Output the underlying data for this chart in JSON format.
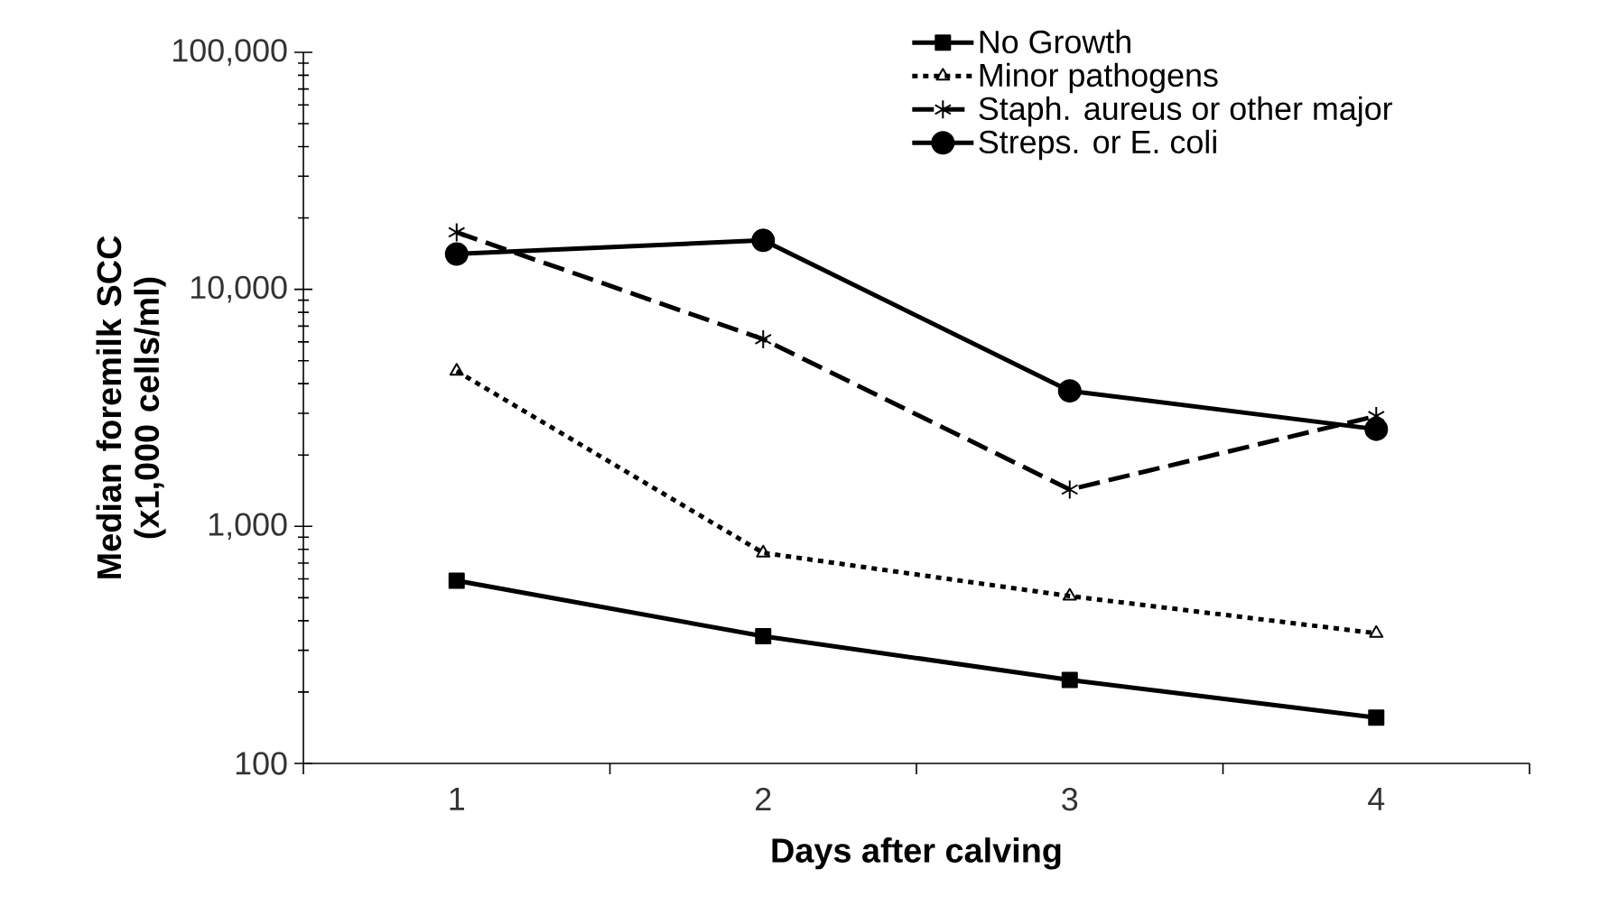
{
  "chart_data": {
    "type": "line",
    "xlabel": "Days after calving",
    "ylabel": "Median foremilk SCC (x1,000 cells/ml)",
    "categories": [
      "1",
      "2",
      "3",
      "4"
    ],
    "series": [
      {
        "name": "No Growth",
        "color": "#000000",
        "marker": "square",
        "line_style": "solid",
        "values": [
          590,
          344,
          225,
          156
        ]
      },
      {
        "name": "Minor pathogens",
        "color": "#000000",
        "marker": "triangle",
        "line_style": "dotted",
        "values": [
          4520,
          773,
          508,
          354
        ]
      },
      {
        "name": "Staph. aureus or other major",
        "color": "#000000",
        "marker": "cross",
        "line_style": "dashed",
        "values": [
          17400,
          6160,
          1430,
          2920
        ]
      },
      {
        "name": "Streps. or E. coli",
        "color": "#000000",
        "marker": "circle",
        "line_style": "solid",
        "values": [
          14100,
          16100,
          3730,
          2570
        ]
      }
    ],
    "log": "y",
    "ylim": [
      100,
      100000
    ],
    "yticks": [
      {
        "value": 100,
        "label": "100"
      },
      {
        "value": 1000,
        "label": "1,000"
      },
      {
        "value": 10000,
        "label": "10,000"
      },
      {
        "value": 100000,
        "label": "100,000"
      }
    ],
    "grid": false,
    "legend": "top right"
  }
}
